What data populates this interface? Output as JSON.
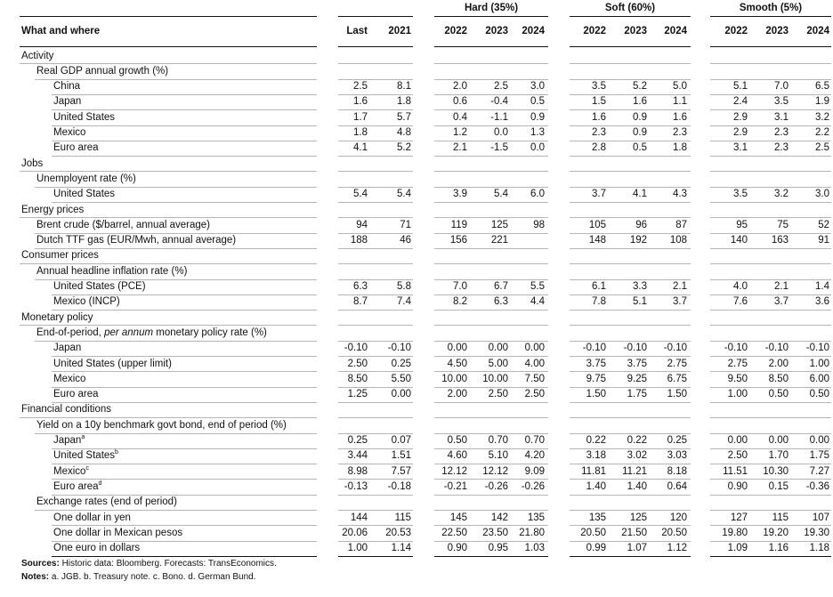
{
  "header": {
    "label_col": "What and where",
    "hist_cols": [
      "Last",
      "2021"
    ],
    "groups": [
      {
        "title": "Hard (35%)",
        "years": [
          "2022",
          "2023",
          "2024"
        ]
      },
      {
        "title": "Soft (60%)",
        "years": [
          "2022",
          "2023",
          "2024"
        ]
      },
      {
        "title": "Smooth (5%)",
        "years": [
          "2022",
          "2023",
          "2024"
        ]
      }
    ]
  },
  "rows": [
    {
      "label": "Activity",
      "level": 0,
      "values": []
    },
    {
      "label": "Real GDP annual growth (%)",
      "level": 1,
      "values": []
    },
    {
      "label": "China",
      "level": 2,
      "values": [
        "2.5",
        "8.1",
        "2.0",
        "2.5",
        "3.0",
        "3.5",
        "5.2",
        "5.0",
        "5.1",
        "7.0",
        "6.5"
      ]
    },
    {
      "label": "Japan",
      "level": 2,
      "values": [
        "1.6",
        "1.8",
        "0.6",
        "-0.4",
        "0.5",
        "1.5",
        "1.6",
        "1.1",
        "2.4",
        "3.5",
        "1.9"
      ]
    },
    {
      "label": "United States",
      "level": 2,
      "values": [
        "1.7",
        "5.7",
        "0.4",
        "-1.1",
        "0.9",
        "1.6",
        "0.9",
        "1.6",
        "2.9",
        "3.1",
        "3.2"
      ]
    },
    {
      "label": "Mexico",
      "level": 2,
      "values": [
        "1.8",
        "4.8",
        "1.2",
        "0.0",
        "1.3",
        "2.3",
        "0.9",
        "2.3",
        "2.9",
        "2.3",
        "2.2"
      ]
    },
    {
      "label": "Euro area",
      "level": 2,
      "values": [
        "4.1",
        "5.2",
        "2.1",
        "-1.5",
        "0.0",
        "2.8",
        "0.5",
        "1.8",
        "3.1",
        "2.3",
        "2.5"
      ]
    },
    {
      "label": "Jobs",
      "level": 0,
      "values": []
    },
    {
      "label": "Unemployent rate (%)",
      "level": 1,
      "values": []
    },
    {
      "label": "United States",
      "level": 2,
      "values": [
        "5.4",
        "5.4",
        "3.9",
        "5.4",
        "6.0",
        "3.7",
        "4.1",
        "4.3",
        "3.5",
        "3.2",
        "3.0"
      ]
    },
    {
      "label": "Energy prices",
      "level": 0,
      "values": []
    },
    {
      "label": "Brent crude ($/barrel, annual average)",
      "level": 1,
      "values": [
        "94",
        "71",
        "119",
        "125",
        "98",
        "105",
        "96",
        "87",
        "95",
        "75",
        "52"
      ]
    },
    {
      "label": "Dutch TTF gas (EUR/Mwh, annual average)",
      "level": 1,
      "values": [
        "188",
        "46",
        "156",
        "221",
        "",
        "148",
        "192",
        "108",
        "140",
        "163",
        "91"
      ]
    },
    {
      "label": "Consumer prices",
      "level": 0,
      "values": []
    },
    {
      "label": "Annual headline inflation rate (%)",
      "level": 1,
      "values": []
    },
    {
      "label": "United States (PCE)",
      "level": 2,
      "values": [
        "6.3",
        "5.8",
        "7.0",
        "6.7",
        "5.5",
        "6.1",
        "3.3",
        "2.1",
        "4.0",
        "2.1",
        "1.4"
      ]
    },
    {
      "label": "Mexico (INCP)",
      "level": 2,
      "values": [
        "8.7",
        "7.4",
        "8.2",
        "6.3",
        "4.4",
        "7.8",
        "5.1",
        "3.7",
        "7.6",
        "3.7",
        "3.6"
      ]
    },
    {
      "label": "Monetary policy",
      "level": 0,
      "values": []
    },
    {
      "label": "End-of-period, ",
      "italic": "per annum",
      "tail": " monetary policy rate (%)",
      "level": 1,
      "values": []
    },
    {
      "label": "Japan",
      "level": 2,
      "values": [
        "-0.10",
        "-0.10",
        "0.00",
        "0.00",
        "0.00",
        "-0.10",
        "-0.10",
        "-0.10",
        "-0.10",
        "-0.10",
        "-0.10"
      ]
    },
    {
      "label": "United States (upper limit)",
      "level": 2,
      "values": [
        "2.50",
        "0.25",
        "4.50",
        "5.00",
        "4.00",
        "3.75",
        "3.75",
        "2.75",
        "2.75",
        "2.00",
        "1.00"
      ]
    },
    {
      "label": "Mexico",
      "level": 2,
      "values": [
        "8.50",
        "5.50",
        "10.00",
        "10.00",
        "7.50",
        "9.75",
        "9.25",
        "6.75",
        "9.50",
        "8.50",
        "6.00"
      ]
    },
    {
      "label": "Euro area",
      "level": 2,
      "values": [
        "1.25",
        "0.00",
        "2.00",
        "2.50",
        "2.50",
        "1.50",
        "1.75",
        "1.50",
        "1.00",
        "0.50",
        "0.50"
      ]
    },
    {
      "label": "Financial conditions",
      "level": 0,
      "values": []
    },
    {
      "label": "Yield on a 10y benchmark govt bond, end of period (%)",
      "level": 1,
      "values": []
    },
    {
      "label": "Japan",
      "sup": "a",
      "level": 2,
      "values": [
        "0.25",
        "0.07",
        "0.50",
        "0.70",
        "0.70",
        "0.22",
        "0.22",
        "0.25",
        "0.00",
        "0.00",
        "0.00"
      ]
    },
    {
      "label": "United States",
      "sup": "b",
      "level": 2,
      "values": [
        "3.44",
        "1.51",
        "4.60",
        "5.10",
        "4.20",
        "3.18",
        "3.02",
        "3.03",
        "2.50",
        "1.70",
        "1.75"
      ]
    },
    {
      "label": "Mexico",
      "sup": "c",
      "level": 2,
      "values": [
        "8.98",
        "7.57",
        "12.12",
        "12.12",
        "9.09",
        "11.81",
        "11.21",
        "8.18",
        "11.51",
        "10.30",
        "7.27"
      ]
    },
    {
      "label": "Euro area",
      "sup": "d",
      "level": 2,
      "values": [
        "-0.13",
        "-0.18",
        "-0.21",
        "-0.26",
        "-0.26",
        "1.40",
        "1.40",
        "0.64",
        "0.90",
        "0.15",
        "-0.36"
      ]
    },
    {
      "label": "Exchange rates (end of period)",
      "level": 1,
      "values": []
    },
    {
      "label": "One dollar in yen",
      "level": 2,
      "values": [
        "144",
        "115",
        "145",
        "142",
        "135",
        "135",
        "125",
        "120",
        "127",
        "115",
        "107"
      ]
    },
    {
      "label": "One dollar in Mexican pesos",
      "level": 2,
      "values": [
        "20.06",
        "20.53",
        "22.50",
        "23.50",
        "21.80",
        "20.50",
        "21.50",
        "20.50",
        "19.80",
        "19.20",
        "19.30"
      ]
    },
    {
      "label": "One euro in dollars",
      "level": 2,
      "values": [
        "1.00",
        "1.14",
        "0.90",
        "0.95",
        "1.03",
        "0.99",
        "1.07",
        "1.12",
        "1.09",
        "1.16",
        "1.18"
      ]
    }
  ],
  "notes": {
    "sources_label": "Sources:",
    "sources_text": " Historic data: Bloomberg. Forecasts: TransEconomics.",
    "notes_label": "Notes:",
    "notes_text": " a. JGB. b. Treasury note. c. Bono. d. German Bund."
  }
}
